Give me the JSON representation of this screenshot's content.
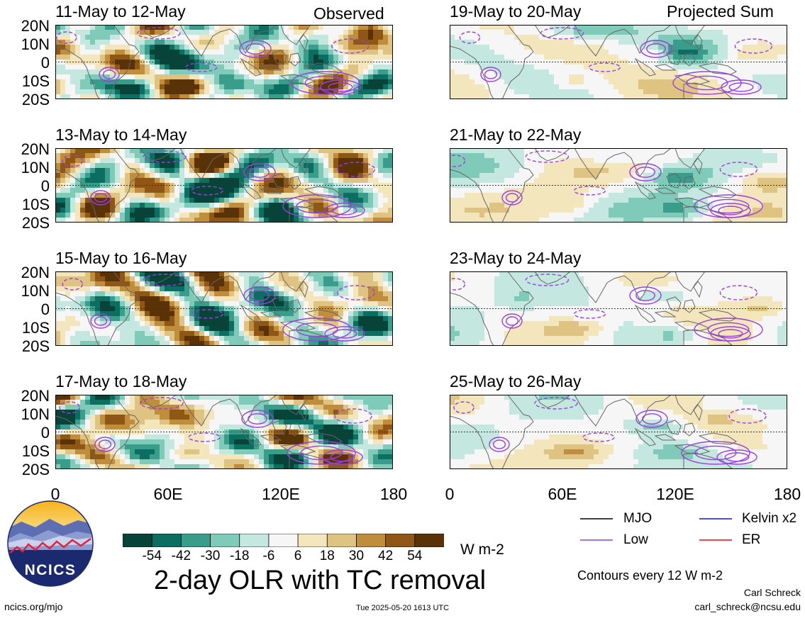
{
  "header": {
    "observed_label": "Observed",
    "projected_label": "Projected Sum"
  },
  "panels_left": [
    {
      "title": "11-May to 12-May"
    },
    {
      "title": "13-May to 14-May"
    },
    {
      "title": "15-May to 16-May"
    },
    {
      "title": "17-May to 18-May"
    }
  ],
  "panels_right": [
    {
      "title": "19-May to 20-May"
    },
    {
      "title": "21-May to 22-May"
    },
    {
      "title": "23-May to 24-May"
    },
    {
      "title": "25-May to 26-May"
    }
  ],
  "lat_labels": [
    "20N",
    "10N",
    "0",
    "10S",
    "20S"
  ],
  "lon_labels_left": [
    "0",
    "60E",
    "120E",
    "180"
  ],
  "lon_labels_right": [
    "0",
    "60E",
    "120E",
    "180"
  ],
  "colorbar": {
    "colors": [
      "#08433a",
      "#0b6e60",
      "#3a9d8c",
      "#7fcab9",
      "#c4e8df",
      "#f6f6f6",
      "#f3e5bc",
      "#dfc383",
      "#c08d3c",
      "#8e5716",
      "#5a3208"
    ],
    "tick_labels": [
      "-54",
      "-42",
      "-30",
      "-18",
      "-6",
      "6",
      "18",
      "30",
      "42",
      "54"
    ],
    "units": "W m-2"
  },
  "title": "2-day OLR with TC removal",
  "legend": {
    "items": [
      {
        "label": "MJO",
        "color": "#000000"
      },
      {
        "label": "Kelvin x2",
        "color": "#1010e0"
      },
      {
        "label": "Low",
        "color": "#9a3fe0"
      },
      {
        "label": "ER",
        "color": "#e01010"
      }
    ],
    "contour_note": "Contours every 12 W m-2"
  },
  "footer": {
    "url": "ncics.org/mjo",
    "timestamp": "Tue 2025-05-20 1613 UTC",
    "author": "Carl Schreck",
    "email": "carl_schreck@ncsu.edu"
  },
  "logo": {
    "text": "NCICS"
  }
}
